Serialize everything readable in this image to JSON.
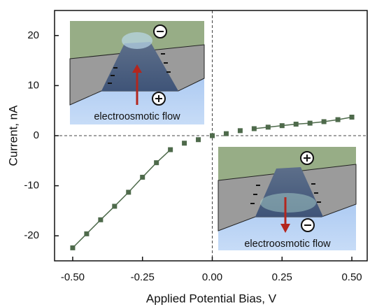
{
  "chart_data": {
    "type": "scatter",
    "x_label": "Applied Potential Bias, V",
    "y_label": "Current, nA",
    "x": [
      -0.5,
      -0.45,
      -0.4,
      -0.35,
      -0.3,
      -0.25,
      -0.2,
      -0.15,
      -0.1,
      -0.05,
      0,
      0.05,
      0.1,
      0.15,
      0.2,
      0.25,
      0.3,
      0.35,
      0.4,
      0.45,
      0.5
    ],
    "series": [
      {
        "color": "#4e6a4b",
        "marker": "square",
        "values": [
          -22.4,
          -19.6,
          -16.8,
          -14.1,
          -11.3,
          -8.3,
          -5.4,
          -2.8,
          -1.5,
          -0.8,
          0,
          0.4,
          1.0,
          1.4,
          1.7,
          2.0,
          2.3,
          2.5,
          2.8,
          3.2,
          3.7
        ]
      },
      {
        "color": "#4e6a4b",
        "marker": "line",
        "values": [
          -22.4,
          -19.6,
          -16.8,
          -14.1,
          -11.3,
          -8.3,
          -5.4,
          -2.8,
          null,
          null,
          null,
          null,
          null,
          1.4,
          1.7,
          2.0,
          2.3,
          2.5,
          2.8,
          3.2,
          3.7
        ]
      }
    ],
    "xlim": [
      -0.565,
      0.555
    ],
    "ylim": [
      -25,
      25
    ],
    "xticks": [
      {
        "value": -0.5,
        "label": "-0.50"
      },
      {
        "value": -0.25,
        "label": "-0.25"
      },
      {
        "value": 0,
        "label": "0.00"
      },
      {
        "value": 0.25,
        "label": "0.25"
      },
      {
        "value": 0.5,
        "label": "0.50"
      }
    ],
    "yticks": [
      -20,
      -10,
      0,
      10,
      20
    ],
    "zero_lines": true,
    "annotations": [
      "electroosmotic flow",
      "electroosmotic flow"
    ]
  }
}
